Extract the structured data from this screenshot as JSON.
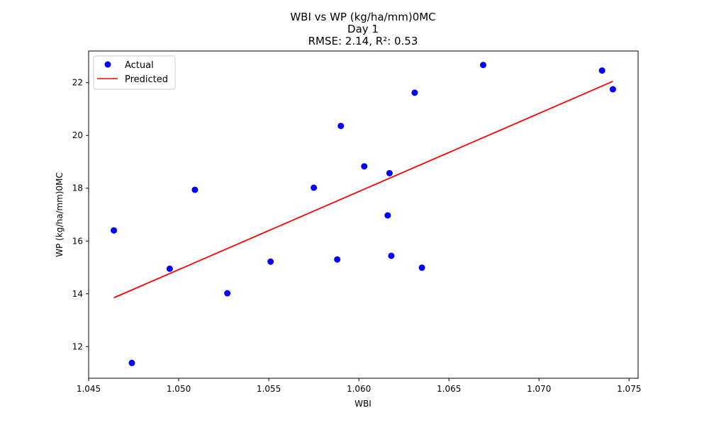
{
  "chart_data": {
    "type": "scatter",
    "title_lines": [
      "WBI vs WP (kg/ha/mm)0MC",
      "Day 1",
      "RMSE: 2.14, R²: 0.53"
    ],
    "xlabel": "WBI",
    "ylabel": "WP (kg/ha/mm)0MC",
    "xlim": [
      1.045,
      1.0755
    ],
    "ylim": [
      10.8,
      23.2
    ],
    "x_ticks": [
      1.045,
      1.05,
      1.055,
      1.06,
      1.065,
      1.07,
      1.075
    ],
    "x_tick_labels": [
      "1.045",
      "1.050",
      "1.055",
      "1.060",
      "1.065",
      "1.070",
      "1.075"
    ],
    "y_ticks": [
      12,
      14,
      16,
      18,
      20,
      22
    ],
    "y_tick_labels": [
      "12",
      "14",
      "16",
      "18",
      "20",
      "22"
    ],
    "legend_position": "top-left",
    "colors": {
      "actual": "#0000ff",
      "predicted": "#ff0000"
    },
    "series": [
      {
        "name": "Actual",
        "kind": "scatter",
        "points": [
          {
            "x": 1.0464,
            "y": 16.4
          },
          {
            "x": 1.0474,
            "y": 11.38
          },
          {
            "x": 1.0495,
            "y": 14.95
          },
          {
            "x": 1.0509,
            "y": 17.94
          },
          {
            "x": 1.0527,
            "y": 14.02
          },
          {
            "x": 1.0551,
            "y": 15.22
          },
          {
            "x": 1.0575,
            "y": 18.02
          },
          {
            "x": 1.0588,
            "y": 15.3
          },
          {
            "x": 1.059,
            "y": 20.36
          },
          {
            "x": 1.0603,
            "y": 18.83
          },
          {
            "x": 1.0616,
            "y": 16.97
          },
          {
            "x": 1.0617,
            "y": 18.57
          },
          {
            "x": 1.0618,
            "y": 15.44
          },
          {
            "x": 1.0631,
            "y": 21.62
          },
          {
            "x": 1.0635,
            "y": 14.99
          },
          {
            "x": 1.0669,
            "y": 22.67
          },
          {
            "x": 1.0735,
            "y": 22.46
          },
          {
            "x": 1.0741,
            "y": 21.75
          }
        ]
      },
      {
        "name": "Predicted",
        "kind": "line",
        "points": [
          {
            "x": 1.0464,
            "y": 13.85
          },
          {
            "x": 1.0741,
            "y": 22.05
          }
        ]
      }
    ]
  }
}
